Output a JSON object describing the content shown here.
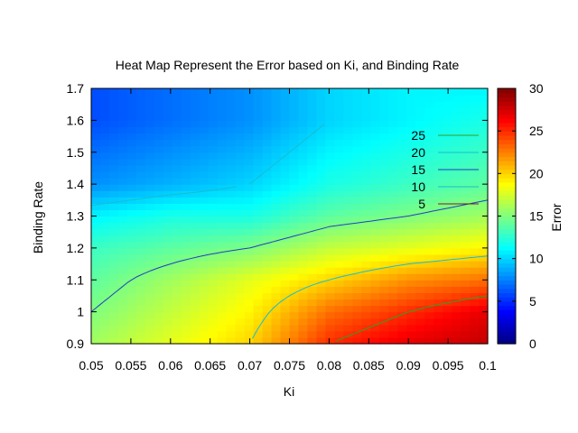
{
  "chart_data": {
    "type": "heatmap",
    "title": "Heat Map Represent the Error based on Ki, and Binding Rate",
    "xlabel": "Ki",
    "ylabel": "Binding Rate",
    "colorbar_label": "Error",
    "xlim": [
      0.05,
      0.1
    ],
    "ylim": [
      0.9,
      1.7
    ],
    "zlim": [
      0,
      30
    ],
    "x_ticks": [
      "0.05",
      "0.055",
      "0.06",
      "0.065",
      "0.07",
      "0.075",
      "0.08",
      "0.085",
      "0.09",
      "0.095",
      "0.1"
    ],
    "y_ticks": [
      "0.9",
      "1",
      "1.1",
      "1.2",
      "1.3",
      "1.4",
      "1.5",
      "1.6",
      "1.7"
    ],
    "colorbar_ticks": [
      "0",
      "5",
      "10",
      "15",
      "20",
      "25",
      "30"
    ],
    "colormap": "jet",
    "legend_position": "right",
    "contour_legend": [
      {
        "label": "25",
        "color": "#2ca02c"
      },
      {
        "label": "20",
        "color": "#17becf"
      },
      {
        "label": "15",
        "color": "#1f3fbf"
      },
      {
        "label": "10",
        "color": "#17becf"
      },
      {
        "label": "5",
        "color": "#8b1a1a"
      }
    ],
    "x": [
      0.05,
      0.06,
      0.07,
      0.08,
      0.09,
      0.1
    ],
    "y": [
      0.9,
      1.0,
      1.1,
      1.2,
      1.3,
      1.4,
      1.5,
      1.6,
      1.7
    ],
    "z": [
      [
        16,
        18,
        20,
        25,
        27,
        28
      ],
      [
        15,
        17,
        19,
        23,
        25,
        27
      ],
      [
        14,
        16,
        18,
        20,
        22,
        23
      ],
      [
        13,
        14,
        15,
        17,
        18,
        19
      ],
      [
        11,
        12,
        12,
        14,
        15,
        16
      ],
      [
        8,
        9,
        10,
        12,
        13,
        14
      ],
      [
        7,
        8,
        9,
        11,
        12,
        13
      ],
      [
        6,
        7,
        8,
        10,
        11,
        12
      ],
      [
        6,
        7,
        8,
        10,
        11,
        11
      ]
    ]
  }
}
